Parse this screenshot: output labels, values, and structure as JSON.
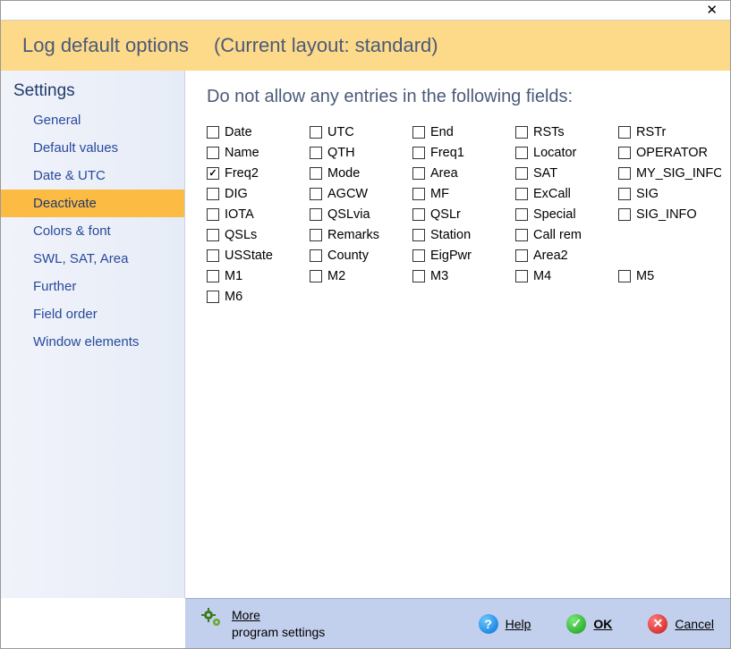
{
  "window": {
    "close_glyph": "✕"
  },
  "header": {
    "title": "Log default options",
    "subtitle": "(Current layout: standard)"
  },
  "sidebar": {
    "heading": "Settings",
    "items": [
      {
        "label": "General",
        "selected": false
      },
      {
        "label": "Default values",
        "selected": false
      },
      {
        "label": "Date & UTC",
        "selected": false
      },
      {
        "label": "Deactivate",
        "selected": true
      },
      {
        "label": "Colors & font",
        "selected": false
      },
      {
        "label": "SWL, SAT, Area",
        "selected": false
      },
      {
        "label": "Further",
        "selected": false
      },
      {
        "label": "Field order",
        "selected": false
      },
      {
        "label": "Window elements",
        "selected": false
      }
    ]
  },
  "main": {
    "heading": "Do not allow any entries in the following fields:",
    "fields": [
      {
        "label": "Date",
        "checked": false
      },
      {
        "label": "UTC",
        "checked": false
      },
      {
        "label": "End",
        "checked": false
      },
      {
        "label": "RSTs",
        "checked": false
      },
      {
        "label": "RSTr",
        "checked": false
      },
      {
        "label": "Name",
        "checked": false
      },
      {
        "label": "QTH",
        "checked": false
      },
      {
        "label": "Freq1",
        "checked": false
      },
      {
        "label": "Locator",
        "checked": false
      },
      {
        "label": "OPERATOR",
        "checked": false
      },
      {
        "label": "Freq2",
        "checked": true
      },
      {
        "label": "Mode",
        "checked": false
      },
      {
        "label": "Area",
        "checked": false
      },
      {
        "label": "SAT",
        "checked": false
      },
      {
        "label": "MY_SIG_INFO",
        "checked": false
      },
      {
        "label": "DIG",
        "checked": false
      },
      {
        "label": "AGCW",
        "checked": false
      },
      {
        "label": "MF",
        "checked": false
      },
      {
        "label": "ExCall",
        "checked": false
      },
      {
        "label": "SIG",
        "checked": false
      },
      {
        "label": "IOTA",
        "checked": false
      },
      {
        "label": "QSLvia",
        "checked": false
      },
      {
        "label": "QSLr",
        "checked": false
      },
      {
        "label": "Special",
        "checked": false
      },
      {
        "label": "SIG_INFO",
        "checked": false
      },
      {
        "label": "QSLs",
        "checked": false
      },
      {
        "label": "Remarks",
        "checked": false
      },
      {
        "label": "Station",
        "checked": false
      },
      {
        "label": "Call rem",
        "checked": false
      },
      {
        "label": "",
        "checked": false,
        "empty": true
      },
      {
        "label": "USState",
        "checked": false
      },
      {
        "label": "County",
        "checked": false
      },
      {
        "label": "EigPwr",
        "checked": false
      },
      {
        "label": "Area2",
        "checked": false
      },
      {
        "label": "",
        "checked": false,
        "empty": true
      },
      {
        "label": "M1",
        "checked": false
      },
      {
        "label": "M2",
        "checked": false
      },
      {
        "label": "M3",
        "checked": false
      },
      {
        "label": "M4",
        "checked": false
      },
      {
        "label": "M5",
        "checked": false
      },
      {
        "label": "M6",
        "checked": false
      }
    ]
  },
  "footer": {
    "more_top": "More",
    "more_bottom": "program settings",
    "help": "Help",
    "ok": "OK",
    "cancel": "Cancel"
  },
  "colors": {
    "header_bg": "#fdd98a",
    "sidebar_selected_bg": "#fcbb42",
    "footer_bg": "#c2cfed"
  }
}
